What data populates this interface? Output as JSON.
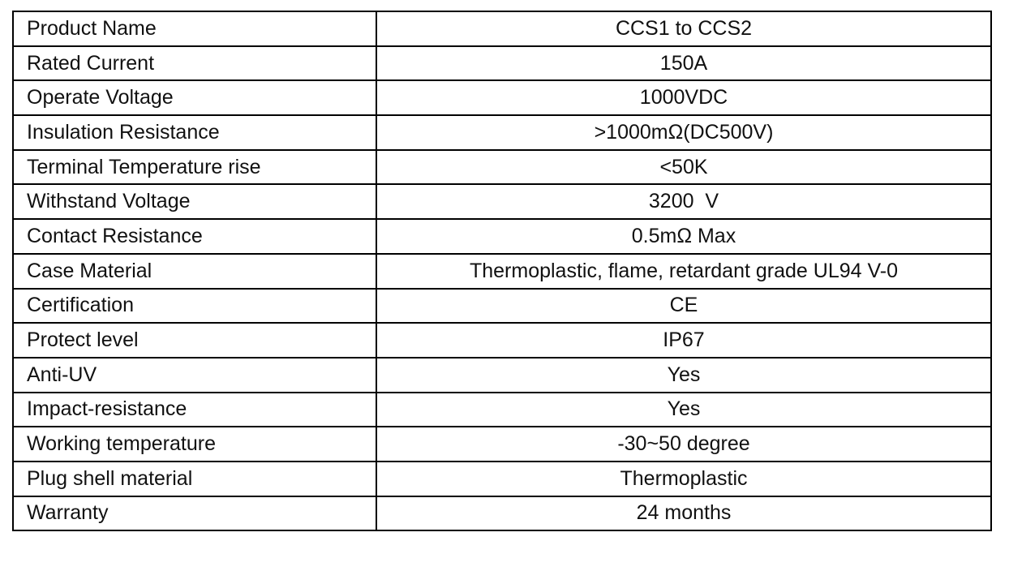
{
  "table": {
    "rows": [
      [
        "Product Name",
        "CCS1 to CCS2"
      ],
      [
        "Rated Current",
        "150A"
      ],
      [
        "Operate Voltage",
        "1000VDC"
      ],
      [
        "Insulation Resistance",
        ">1000mΩ(DC500V)"
      ],
      [
        "Terminal Temperature rise",
        "<50K"
      ],
      [
        "Withstand Voltage",
        "3200  V"
      ],
      [
        "Contact Resistance",
        "0.5mΩ Max"
      ],
      [
        "Case Material",
        "Thermoplastic, flame, retardant grade UL94 V-0"
      ],
      [
        "Certification",
        "CE"
      ],
      [
        "Protect level",
        "IP67"
      ],
      [
        "Anti-UV",
        "Yes"
      ],
      [
        "Impact-resistance",
        "Yes"
      ],
      [
        "Working temperature",
        "-30~50 degree"
      ],
      [
        "Plug shell material",
        "Thermoplastic"
      ],
      [
        "Warranty",
        "24 months"
      ]
    ]
  }
}
